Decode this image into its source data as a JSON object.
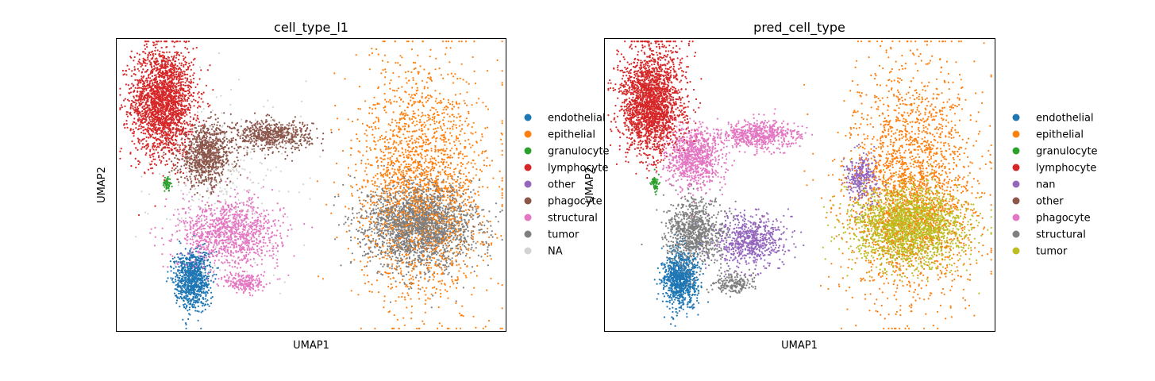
{
  "chart_data": [
    {
      "type": "scatter",
      "title": "cell_type_l1",
      "xlabel": "UMAP1",
      "ylabel": "UMAP2",
      "grid": false,
      "legend_placement": "right-outside",
      "categories": [
        "endothelial",
        "epithelial",
        "granulocyte",
        "lymphocyte",
        "other",
        "phagocyte",
        "structural",
        "tumor",
        "NA"
      ],
      "legend_labels": [
        "endothelial",
        "epithelial",
        "granulocyte",
        "lymphocyte",
        "other",
        "phagocyte",
        "structural",
        "tumor",
        "NA"
      ],
      "colors": [
        "#1f77b4",
        "#ff7f0e",
        "#2ca02c",
        "#d62728",
        "#9467bd",
        "#8c564b",
        "#e377c2",
        "#7f7f7f",
        "#d3d3d3"
      ],
      "clusters": [
        {
          "category": "lymphocyte",
          "x": [
            0.04,
            0.2
          ],
          "y": [
            0.6,
            0.97
          ],
          "approx_points": 2600
        },
        {
          "category": "granulocyte",
          "x": [
            0.12,
            0.14
          ],
          "y": [
            0.48,
            0.53
          ],
          "approx_points": 60
        },
        {
          "category": "phagocyte",
          "x": [
            0.16,
            0.3
          ],
          "y": [
            0.5,
            0.7
          ],
          "approx_points": 900
        },
        {
          "category": "phagocyte",
          "x": [
            0.3,
            0.5
          ],
          "y": [
            0.62,
            0.72
          ],
          "approx_points": 600
        },
        {
          "category": "structural",
          "x": [
            0.16,
            0.42
          ],
          "y": [
            0.22,
            0.45
          ],
          "approx_points": 1100
        },
        {
          "category": "structural",
          "x": [
            0.28,
            0.38
          ],
          "y": [
            0.13,
            0.2
          ],
          "approx_points": 200
        },
        {
          "category": "endothelial",
          "x": [
            0.15,
            0.24
          ],
          "y": [
            0.08,
            0.28
          ],
          "approx_points": 900
        },
        {
          "category": "epithelial",
          "x": [
            0.62,
            0.95
          ],
          "y": [
            0.1,
            0.9
          ],
          "approx_points": 7000
        },
        {
          "category": "tumor",
          "x": [
            0.64,
            0.92
          ],
          "y": [
            0.22,
            0.5
          ],
          "approx_points": 2500
        },
        {
          "category": "NA",
          "x": [
            0.1,
            0.45
          ],
          "y": [
            0.2,
            0.8
          ],
          "approx_points": 300
        }
      ]
    },
    {
      "type": "scatter",
      "title": "pred_cell_type",
      "xlabel": "UMAP1",
      "ylabel": "UMAP2",
      "grid": false,
      "legend_placement": "right-outside",
      "categories": [
        "endothelial",
        "epithelial",
        "granulocyte",
        "lymphocyte",
        "nan",
        "other",
        "phagocyte",
        "structural",
        "tumor"
      ],
      "legend_labels": [
        "endothelial",
        "epithelial",
        "granulocyte",
        "lymphocyte",
        "nan",
        "other",
        "phagocyte",
        "structural",
        "tumor"
      ],
      "colors": [
        "#1f77b4",
        "#ff7f0e",
        "#2ca02c",
        "#d62728",
        "#9467bd",
        "#8c564b",
        "#e377c2",
        "#7f7f7f",
        "#bcbd22"
      ],
      "clusters": [
        {
          "category": "lymphocyte",
          "x": [
            0.04,
            0.2
          ],
          "y": [
            0.6,
            0.97
          ],
          "approx_points": 2600
        },
        {
          "category": "granulocyte",
          "x": [
            0.12,
            0.14
          ],
          "y": [
            0.48,
            0.53
          ],
          "approx_points": 60
        },
        {
          "category": "phagocyte",
          "x": [
            0.16,
            0.3
          ],
          "y": [
            0.5,
            0.7
          ],
          "approx_points": 900
        },
        {
          "category": "phagocyte",
          "x": [
            0.3,
            0.5
          ],
          "y": [
            0.62,
            0.72
          ],
          "approx_points": 600
        },
        {
          "category": "structural",
          "x": [
            0.16,
            0.3
          ],
          "y": [
            0.22,
            0.45
          ],
          "approx_points": 900
        },
        {
          "category": "nan",
          "x": [
            0.28,
            0.46
          ],
          "y": [
            0.22,
            0.4
          ],
          "approx_points": 700
        },
        {
          "category": "structural",
          "x": [
            0.28,
            0.38
          ],
          "y": [
            0.13,
            0.2
          ],
          "approx_points": 200
        },
        {
          "category": "endothelial",
          "x": [
            0.15,
            0.24
          ],
          "y": [
            0.08,
            0.28
          ],
          "approx_points": 900
        },
        {
          "category": "epithelial",
          "x": [
            0.62,
            0.95
          ],
          "y": [
            0.1,
            0.9
          ],
          "approx_points": 7000
        },
        {
          "category": "tumor",
          "x": [
            0.64,
            0.92
          ],
          "y": [
            0.22,
            0.5
          ],
          "approx_points": 2500
        },
        {
          "category": "nan",
          "x": [
            0.62,
            0.7
          ],
          "y": [
            0.45,
            0.6
          ],
          "approx_points": 300
        }
      ]
    }
  ]
}
